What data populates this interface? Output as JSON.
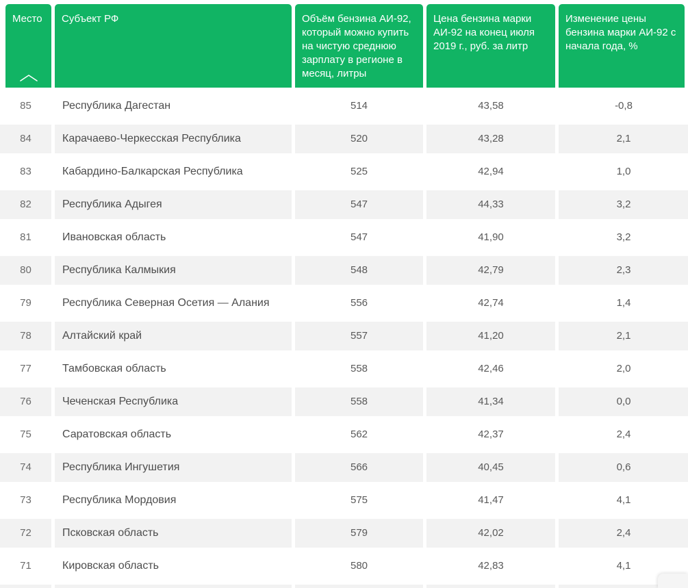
{
  "colors": {
    "header_green": "#11b464",
    "row_alt_gray": "#f2f2f2",
    "header_text": "#ffffff",
    "body_text": "#595959"
  },
  "table": {
    "columns": [
      {
        "label": "Место",
        "sorted_ascending": true
      },
      {
        "label": "Субъект РФ"
      },
      {
        "label": "Объём бензина АИ-92, который можно купить на чистую среднюю зарплату в регионе в месяц, литры"
      },
      {
        "label": "Цена бензина марки АИ-92 на конец июля 2019 г., руб. за литр"
      },
      {
        "label": "Изменение цены бензина марки АИ-92 с начала года, %"
      }
    ],
    "rows": [
      {
        "rank": "85",
        "region": "Республика Дагестан",
        "volume": "514",
        "price": "43,58",
        "change": "-0,8"
      },
      {
        "rank": "84",
        "region": "Карачаево-Черкесская Республика",
        "volume": "520",
        "price": "43,28",
        "change": "2,1"
      },
      {
        "rank": "83",
        "region": "Кабардино-Балкарская Республика",
        "volume": "525",
        "price": "42,94",
        "change": "1,0"
      },
      {
        "rank": "82",
        "region": "Республика Адыгея",
        "volume": "547",
        "price": "44,33",
        "change": "3,2"
      },
      {
        "rank": "81",
        "region": "Ивановская область",
        "volume": "547",
        "price": "41,90",
        "change": "3,2"
      },
      {
        "rank": "80",
        "region": "Республика Калмыкия",
        "volume": "548",
        "price": "42,79",
        "change": "2,3"
      },
      {
        "rank": "79",
        "region": "Республика Северная Осетия — Алания",
        "volume": "556",
        "price": "42,74",
        "change": "1,4"
      },
      {
        "rank": "78",
        "region": "Алтайский край",
        "volume": "557",
        "price": "41,20",
        "change": "2,1"
      },
      {
        "rank": "77",
        "region": "Тамбовская область",
        "volume": "558",
        "price": "42,46",
        "change": "2,0"
      },
      {
        "rank": "76",
        "region": "Чеченская Республика",
        "volume": "558",
        "price": "41,34",
        "change": "0,0"
      },
      {
        "rank": "75",
        "region": "Саратовская область",
        "volume": "562",
        "price": "42,37",
        "change": "2,4"
      },
      {
        "rank": "74",
        "region": "Республика Ингушетия",
        "volume": "566",
        "price": "40,45",
        "change": "0,6"
      },
      {
        "rank": "73",
        "region": "Республика Мордовия",
        "volume": "575",
        "price": "41,47",
        "change": "4,1"
      },
      {
        "rank": "72",
        "region": "Псковская область",
        "volume": "579",
        "price": "42,02",
        "change": "2,4"
      },
      {
        "rank": "71",
        "region": "Кировская область",
        "volume": "580",
        "price": "42,83",
        "change": "4,1"
      }
    ]
  }
}
